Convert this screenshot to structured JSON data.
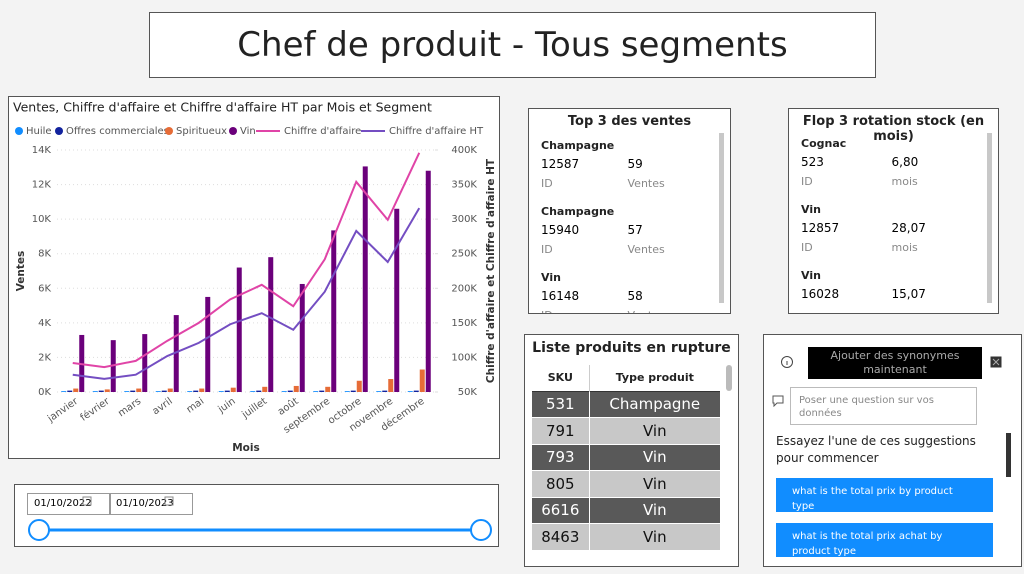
{
  "title": "Chef de produit - Tous segments",
  "chart_data": {
    "type": "combo",
    "title": "Ventes, Chiffre d'affaire et Chiffre d'affaire HT par Mois et Segment",
    "x_label": "Mois",
    "y_label": "Ventes",
    "y2_label": "Chiffre d'affaire et Chiffre d'affaire HT",
    "categories": [
      "janvier",
      "février",
      "mars",
      "avril",
      "mai",
      "juin",
      "juillet",
      "août",
      "septembre",
      "octobre",
      "novembre",
      "décembre"
    ],
    "series": [
      {
        "name": "Huile",
        "type": "bar",
        "color": "#118dff",
        "values": [
          50,
          50,
          50,
          50,
          50,
          50,
          50,
          50,
          50,
          50,
          50,
          50
        ]
      },
      {
        "name": "Offres commerciales",
        "type": "bar",
        "color": "#12239e",
        "values": [
          80,
          80,
          80,
          80,
          80,
          80,
          80,
          80,
          80,
          80,
          80,
          80
        ]
      },
      {
        "name": "Spiritueux",
        "type": "bar",
        "color": "#e66c37",
        "values": [
          200,
          150,
          200,
          200,
          200,
          250,
          300,
          350,
          300,
          650,
          750,
          1300
        ]
      },
      {
        "name": "Vin",
        "type": "bar",
        "color": "#6b007b",
        "values": [
          3300,
          3000,
          3350,
          4450,
          5500,
          7200,
          7800,
          6250,
          9350,
          13050,
          10600,
          12800
        ]
      },
      {
        "name": "Chiffre d'affaire",
        "type": "line",
        "axis": "y2",
        "color": "#e044a7",
        "values": [
          92000,
          86000,
          95000,
          124000,
          150000,
          184000,
          205000,
          174000,
          242000,
          354000,
          299000,
          396000
        ]
      },
      {
        "name": "Chiffre d'affaire HT",
        "type": "line",
        "axis": "y2",
        "color": "#744ec2",
        "values": [
          75000,
          69000,
          75000,
          102000,
          121000,
          148000,
          164000,
          140000,
          195000,
          283000,
          238000,
          316000
        ]
      }
    ],
    "ylim": [
      0,
      14000
    ],
    "yticks": [
      {
        "value": 0,
        "label": "0K"
      },
      {
        "value": 2000,
        "label": "2K"
      },
      {
        "value": 4000,
        "label": "4K"
      },
      {
        "value": 6000,
        "label": "6K"
      },
      {
        "value": 8000,
        "label": "8K"
      },
      {
        "value": 10000,
        "label": "10K"
      },
      {
        "value": 12000,
        "label": "12K"
      },
      {
        "value": 14000,
        "label": "14K"
      }
    ],
    "y2lim": [
      50000,
      400000
    ],
    "y2ticks": [
      {
        "value": 50000,
        "label": "50K"
      },
      {
        "value": 100000,
        "label": "100K"
      },
      {
        "value": 150000,
        "label": "150K"
      },
      {
        "value": 200000,
        "label": "200K"
      },
      {
        "value": 250000,
        "label": "250K"
      },
      {
        "value": 300000,
        "label": "300K"
      },
      {
        "value": 350000,
        "label": "350K"
      },
      {
        "value": 400000,
        "label": "400K"
      }
    ],
    "grid": true
  },
  "slicer": {
    "start": "01/10/2022",
    "end": "01/10/2023"
  },
  "top3": {
    "title": "Top 3 des ventes",
    "items": [
      {
        "name": "Champagne",
        "id": 12587,
        "value": 59,
        "id_label": "ID",
        "value_label": "Ventes"
      },
      {
        "name": "Champagne",
        "id": 15940,
        "value": 57,
        "id_label": "ID",
        "value_label": "Ventes"
      },
      {
        "name": "Vin",
        "id": 16148,
        "value": 58,
        "id_label": "ID",
        "value_label": "Ventes"
      }
    ]
  },
  "flop3": {
    "title": "Flop 3 rotation stock (en mois)",
    "items": [
      {
        "name": "Cognac",
        "id": 523,
        "value": "6,80",
        "id_label": "ID",
        "value_label": "mois"
      },
      {
        "name": "Vin",
        "id": 12857,
        "value": "28,07",
        "id_label": "ID",
        "value_label": "mois"
      },
      {
        "name": "Vin",
        "id": 16028,
        "value": "15,07"
      }
    ]
  },
  "rupture": {
    "title": "Liste produits en rupture",
    "columns": [
      "SKU",
      "Type produit"
    ],
    "rows": [
      [
        531,
        "Champagne"
      ],
      [
        791,
        "Vin"
      ],
      [
        793,
        "Vin"
      ],
      [
        805,
        "Vin"
      ],
      [
        6616,
        "Vin"
      ],
      [
        8463,
        "Vin"
      ]
    ]
  },
  "qa": {
    "button": "Ajouter des synonymes maintenant",
    "placeholder": "Poser une question sur vos données",
    "prompt": "Essayez l'une de ces suggestions pour commencer",
    "suggestions": [
      "what is the total prix by product type",
      "what is the total prix achat by product type"
    ]
  }
}
